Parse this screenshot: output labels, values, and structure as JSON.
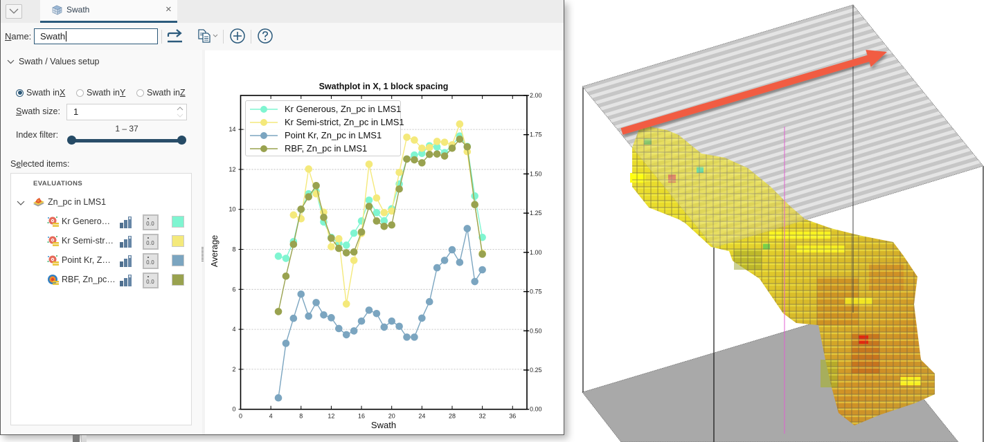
{
  "window": {
    "tab": {
      "label": "Swath",
      "icon": "block-model-icon",
      "close_icon": "close-icon",
      "close_glyph": "×"
    },
    "collapse_icon": "chevron-down-icon"
  },
  "toolbar": {
    "name_label_key": "N",
    "name_label_rest": "ame:",
    "name_value": "Swath",
    "buttons": [
      {
        "name": "share",
        "icon": "share-arrow-icon"
      },
      {
        "name": "copy",
        "icon": "copy-icon",
        "has_dropdown": true
      },
      {
        "name": "add",
        "icon": "add-circle-icon"
      },
      {
        "name": "help",
        "icon": "help-icon"
      }
    ]
  },
  "setup": {
    "section_title": "Swath / Values setup",
    "radios": [
      {
        "prefix": "Swath in ",
        "key": "X",
        "checked": true
      },
      {
        "prefix": "Swath in ",
        "key": "Y",
        "checked": false
      },
      {
        "prefix": "Swath in ",
        "key": "Z",
        "checked": false
      }
    ],
    "swath_size": {
      "label_key": "S",
      "label_rest": "wath size:",
      "value": "1"
    },
    "index_filter": {
      "label": "Index filter:",
      "range_text": "1 – 37",
      "min": 1,
      "max": 37,
      "low": 1,
      "high": 37
    },
    "selected_items": {
      "pre": "S",
      "key": "e",
      "rest": "lected items:"
    }
  },
  "tree": {
    "header": "EVALUATIONS",
    "parent": {
      "label": "Zn_pc in LMS1",
      "expanded": true
    },
    "children": [
      {
        "label": "Kr Genero…",
        "value_button": "0.0",
        "color": "#7ff5d1"
      },
      {
        "label": "Kr Semi-str…",
        "value_button": "0.0",
        "color": "#f4e97b"
      },
      {
        "label": "Point Kr, Z…",
        "value_button": "0.0",
        "color": "#7ba5c0"
      },
      {
        "label": "RBF, Zn_pc…",
        "value_button": "0.0",
        "color": "#99a24f"
      }
    ]
  },
  "chart_data": {
    "type": "line",
    "title": "Swathplot in X, 1 block spacing",
    "xlabel": "Swath",
    "ylabel": "Average",
    "xlim": [
      0,
      37.9
    ],
    "ylim": [
      0,
      15.7
    ],
    "y2lim": [
      0,
      2.0
    ],
    "xticks": [
      0,
      4,
      8,
      12,
      16,
      20,
      24,
      28,
      32,
      36
    ],
    "yticks": [
      0,
      2,
      4,
      6,
      8,
      10,
      12,
      14
    ],
    "y2ticks": [
      "0.00",
      "0.25",
      "0.50",
      "0.75",
      "1.00",
      "1.25",
      "1.50",
      "1.75",
      "2.00"
    ],
    "grid": true,
    "legend_position": "upper left",
    "series": [
      {
        "name": "Kr Generous, Zn_pc in LMS1",
        "color": "#7ff5d1",
        "x": [
          5,
          6,
          7,
          8,
          9,
          10,
          11,
          12,
          13,
          14,
          15,
          16,
          17,
          18,
          19,
          20,
          21,
          22,
          23,
          24,
          25,
          26,
          27,
          28,
          29,
          30,
          31,
          32
        ],
        "y": [
          7.66,
          7.55,
          8.39,
          10.0,
          10.78,
          10.9,
          9.37,
          8.6,
          8.3,
          8.21,
          8.81,
          9.42,
          10.46,
          9.84,
          9.43,
          10.03,
          11.27,
          12.52,
          12.72,
          12.8,
          13.18,
          13.12,
          12.84,
          13.21,
          13.67,
          13.15,
          10.67,
          8.6
        ]
      },
      {
        "name": "Kr Semi-strict, Zn_pc in LMS1",
        "color": "#f4e97b",
        "x": [
          7,
          8,
          9,
          10,
          11,
          12,
          13,
          14,
          15,
          16,
          17,
          18,
          19,
          20,
          21,
          22,
          23,
          24,
          25,
          26,
          27,
          28,
          29,
          30,
          31,
          32
        ],
        "y": [
          9.72,
          9.53,
          12.02,
          10.78,
          9.86,
          8.13,
          8.53,
          5.27,
          7.45,
          8.8,
          12.26,
          10.57,
          9.84,
          9.92,
          11.85,
          13.61,
          13.47,
          13.06,
          13.09,
          13.4,
          13.36,
          13.23,
          14.27,
          12.89,
          10.24,
          7.8
        ]
      },
      {
        "name": "Point Kr, Zn_pc in LMS1",
        "color": "#7ba5c0",
        "x": [
          5,
          6,
          7,
          8,
          9,
          10,
          11,
          12,
          13,
          14,
          15,
          16,
          17,
          18,
          19,
          20,
          21,
          22,
          23,
          24,
          25,
          26,
          27,
          28,
          29,
          30,
          31,
          32
        ],
        "y": [
          0.57,
          3.3,
          4.55,
          5.76,
          4.66,
          5.34,
          4.72,
          4.58,
          4.04,
          3.73,
          3.92,
          4.41,
          4.96,
          4.79,
          4.11,
          4.41,
          4.15,
          3.61,
          3.61,
          4.56,
          5.38,
          7.08,
          7.45,
          7.98,
          7.35,
          9.04,
          6.39,
          6.98
        ]
      },
      {
        "name": "RBF, Zn_pc in LMS1",
        "color": "#99a24f",
        "x": [
          5,
          6,
          7,
          8,
          9,
          10,
          11,
          12,
          13,
          14,
          15,
          16,
          17,
          18,
          19,
          20,
          21,
          22,
          23,
          24,
          25,
          26,
          27,
          28,
          29,
          30,
          31,
          32
        ],
        "y": [
          4.89,
          6.66,
          8.25,
          10.01,
          10.63,
          11.19,
          9.6,
          8.56,
          8.05,
          7.83,
          7.87,
          8.87,
          10.15,
          9.42,
          9.15,
          9.22,
          11.02,
          12.52,
          12.48,
          12.33,
          12.75,
          12.77,
          12.67,
          13.06,
          13.51,
          13.13,
          10.24,
          7.76
        ]
      }
    ]
  },
  "view3d": {
    "arrow_color": "#f15b42",
    "drillhole_color": "#e060d0",
    "swath_direction": "X"
  }
}
